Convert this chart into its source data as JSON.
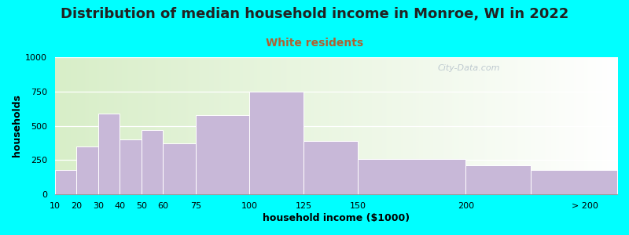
{
  "title": "Distribution of median household income in Monroe, WI in 2022",
  "subtitle": "White residents",
  "xlabel": "household income ($1000)",
  "ylabel": "households",
  "bg_outer": "#00FFFF",
  "bg_left": "#d8eec8",
  "bg_right": "#ffffff",
  "bar_color": "#c8b8d8",
  "bar_edge_color": "#ffffff",
  "bin_edges": [
    10,
    20,
    30,
    40,
    50,
    60,
    75,
    100,
    125,
    150,
    200,
    230,
    270
  ],
  "values": [
    175,
    350,
    590,
    400,
    470,
    370,
    580,
    750,
    390,
    255,
    210,
    175
  ],
  "xtick_positions": [
    10,
    20,
    30,
    40,
    50,
    60,
    75,
    100,
    125,
    150,
    200
  ],
  "xtick_labels": [
    "10",
    "20",
    "30",
    "40",
    "50",
    "60",
    "75",
    "100",
    "125",
    "150",
    "200"
  ],
  "xtick_extra_pos": 255,
  "xtick_extra_label": "> 200",
  "ylim": [
    0,
    1000
  ],
  "yticks": [
    0,
    250,
    500,
    750,
    1000
  ],
  "xlim": [
    10,
    270
  ],
  "title_fontsize": 13,
  "subtitle_fontsize": 10,
  "subtitle_color": "#b06030",
  "axis_label_fontsize": 9,
  "tick_fontsize": 8,
  "watermark": "City-Data.com",
  "watermark_color": "#b8c4cc"
}
